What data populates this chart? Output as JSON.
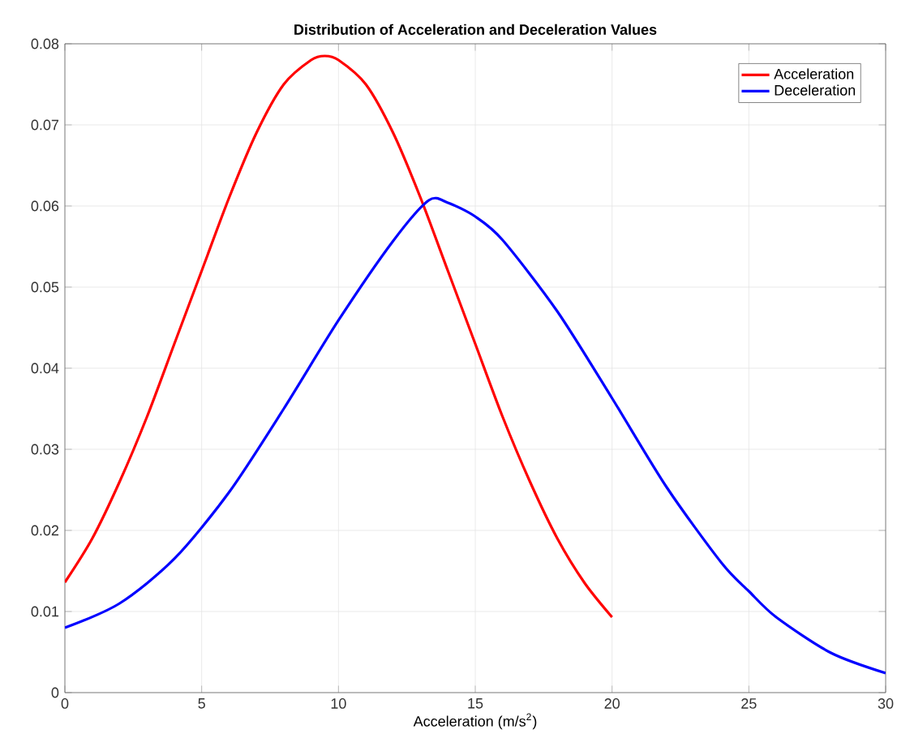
{
  "chart_data": {
    "type": "line",
    "title": "Distribution of Acceleration and Deceleration Values",
    "xlabel": "Acceleration (m/s$^{2}$)",
    "xlim": [
      0,
      30
    ],
    "ylim": [
      0,
      0.08
    ],
    "xticks": [
      0,
      5,
      10,
      15,
      20,
      25,
      30
    ],
    "yticks": [
      0,
      0.01,
      0.02,
      0.03,
      0.04,
      0.05,
      0.06,
      0.07,
      0.08
    ],
    "grid": true,
    "legend": "top right",
    "line_style": "solid",
    "marker": "none",
    "series": [
      {
        "name": "Acceleration",
        "color": "#ff0000",
        "x": [
          0,
          1,
          2,
          3,
          4,
          5,
          6,
          7,
          8,
          9,
          9.5,
          10,
          11,
          12,
          13,
          14,
          15,
          16,
          17,
          18,
          19,
          20
        ],
        "values": [
          0.0136,
          0.019,
          0.026,
          0.034,
          0.043,
          0.052,
          0.061,
          0.069,
          0.075,
          0.078,
          0.0785,
          0.078,
          0.075,
          0.069,
          0.061,
          0.052,
          0.043,
          0.034,
          0.026,
          0.019,
          0.0135,
          0.0093
        ]
      },
      {
        "name": "Deceleration",
        "color": "#0000ff",
        "x": [
          0,
          2,
          4,
          6,
          8,
          10,
          12,
          13.3,
          14,
          15,
          16,
          18,
          20,
          22,
          24,
          25,
          26,
          28,
          30
        ],
        "values": [
          0.008,
          0.011,
          0.0165,
          0.0247,
          0.035,
          0.0459,
          0.0557,
          0.0607,
          0.0604,
          0.0587,
          0.0558,
          0.047,
          0.0363,
          0.0253,
          0.016,
          0.0125,
          0.0093,
          0.0049,
          0.0024
        ]
      }
    ]
  }
}
